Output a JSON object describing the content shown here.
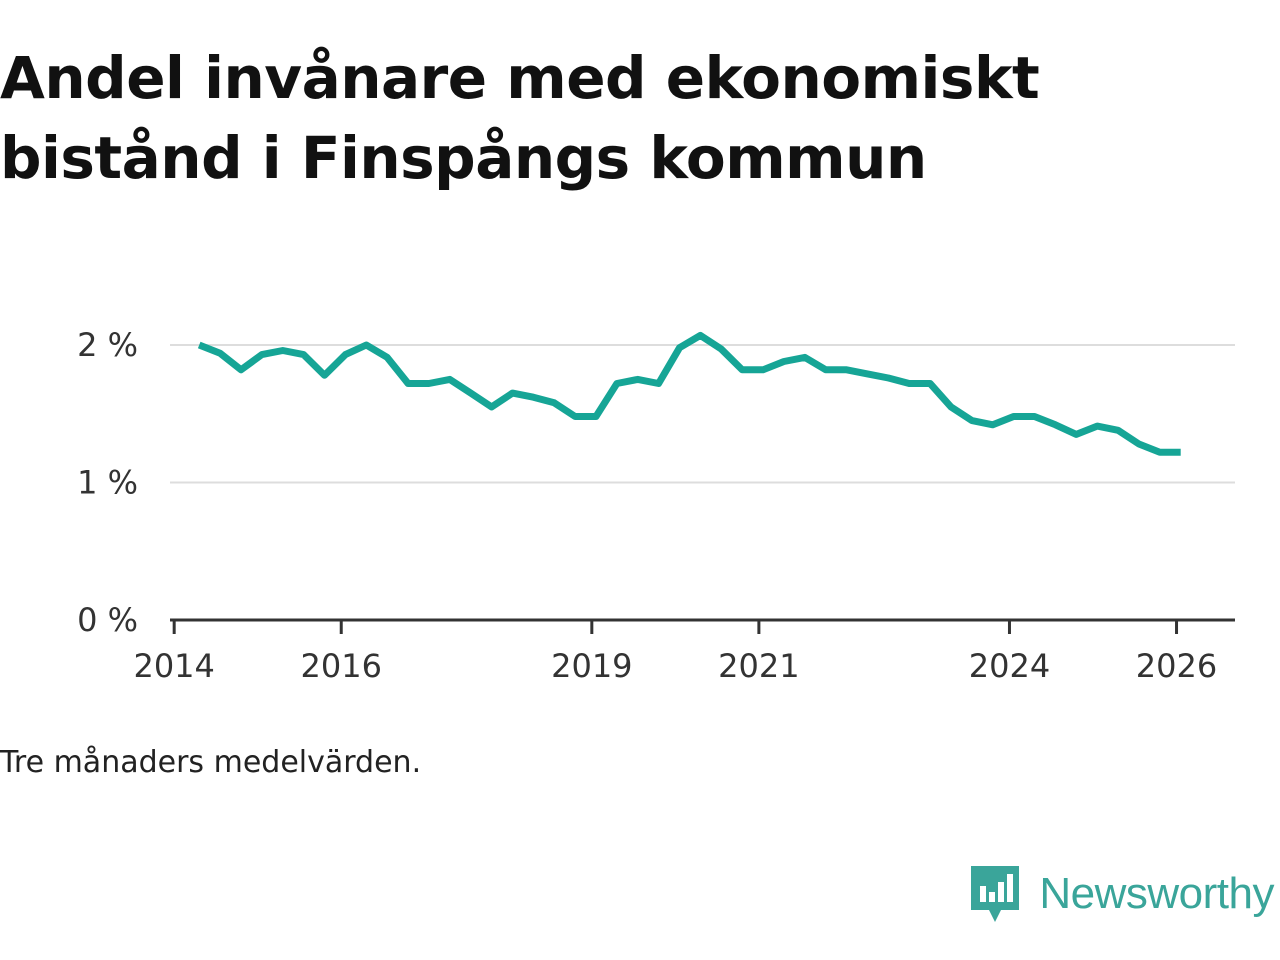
{
  "title": "Andel invånare med ekonomiskt bistånd i Finspångs kommun",
  "note": "Tre månaders medelvärden.",
  "brand": {
    "name": "Newsworthy",
    "icon": "newsworthy-logo-icon",
    "color": "#3aa59a"
  },
  "colors": {
    "line": "#16a596",
    "grid": "#dddddd",
    "axis": "#333333"
  },
  "chart_data": {
    "type": "line",
    "title": "Andel invånare med ekonomiskt bistånd i Finspångs kommun",
    "xlabel": "",
    "ylabel": "",
    "xlim": [
      2013.95,
      2026.7
    ],
    "ylim": [
      0,
      2.1
    ],
    "grid": true,
    "y_ticks": [
      0,
      1,
      2
    ],
    "y_tick_labels": [
      "0 %",
      "1 %",
      "2 %"
    ],
    "x_ticks": [
      2014,
      2016,
      2019,
      2021,
      2024,
      2026
    ],
    "x_tick_labels": [
      "2014",
      "2016",
      "2019",
      "2021",
      "2024",
      "2026"
    ],
    "series": [
      {
        "name": "Andel invånare med ekonomiskt bistånd",
        "x": [
          2014.3,
          2014.55,
          2014.8,
          2015.05,
          2015.3,
          2015.55,
          2015.8,
          2016.05,
          2016.3,
          2016.55,
          2016.8,
          2017.05,
          2017.3,
          2017.55,
          2017.8,
          2018.05,
          2018.3,
          2018.55,
          2018.8,
          2019.05,
          2019.3,
          2019.55,
          2019.8,
          2020.05,
          2020.3,
          2020.55,
          2020.8,
          2021.05,
          2021.3,
          2021.55,
          2021.8,
          2022.05,
          2022.3,
          2022.55,
          2022.8,
          2023.05,
          2023.3,
          2023.55,
          2023.8,
          2024.05,
          2024.3,
          2024.55,
          2024.8,
          2025.05,
          2025.3,
          2025.55,
          2025.8,
          2026.05
        ],
        "values": [
          2.0,
          1.94,
          1.82,
          1.93,
          1.96,
          1.93,
          1.78,
          1.93,
          2.0,
          1.91,
          1.72,
          1.72,
          1.75,
          1.65,
          1.55,
          1.65,
          1.62,
          1.58,
          1.48,
          1.48,
          1.72,
          1.75,
          1.72,
          1.98,
          2.07,
          1.97,
          1.82,
          1.82,
          1.88,
          1.91,
          1.82,
          1.82,
          1.79,
          1.76,
          1.72,
          1.72,
          1.55,
          1.45,
          1.42,
          1.48,
          1.48,
          1.42,
          1.35,
          1.41,
          1.38,
          1.28,
          1.22,
          1.22
        ]
      }
    ]
  }
}
